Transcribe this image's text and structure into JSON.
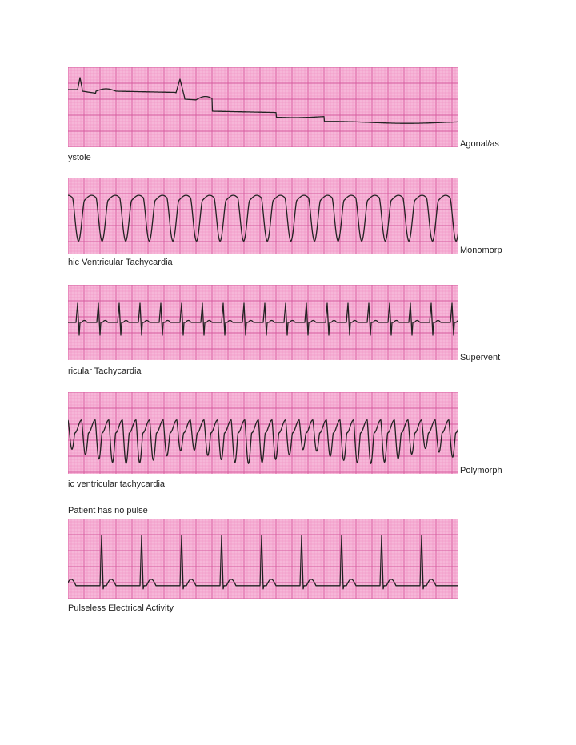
{
  "strips": [
    {
      "label_end": "Agonal/as",
      "label_cont": "ystole",
      "rhythm": "agonal"
    },
    {
      "label_end": "Monomorp",
      "label_cont": "hic Ventricular Tachycardia",
      "rhythm": "monomorphic-vt"
    },
    {
      "label_end": "Supervent",
      "label_cont": "ricular Tachycardia",
      "rhythm": "svt"
    },
    {
      "label_end": "Polymorph",
      "label_cont": "ic ventricular tachycardia",
      "rhythm": "polymorphic-vt"
    },
    {
      "label_end": "",
      "label_cont": "Pulseless Electrical Activity",
      "rhythm": "pea"
    }
  ],
  "note": "Patient has no pulse",
  "colors": {
    "paper": "#f6b6d8",
    "grid_minor": "#f08cc0",
    "grid_major": "#d65a9e",
    "trace": "#222222"
  }
}
